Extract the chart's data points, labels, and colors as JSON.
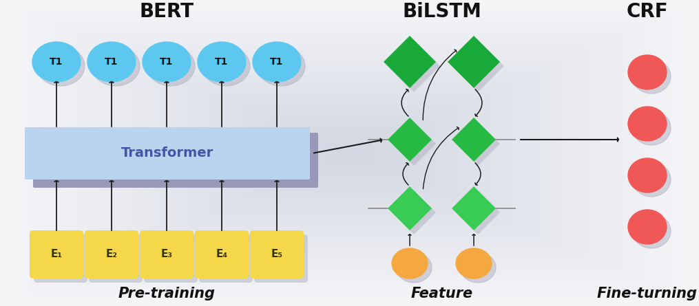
{
  "background_color": "#e8eaf0",
  "bg_gradient_center": "#f5f5f8",
  "bg_gradient_edge": "#d0d4e0",
  "bert_label": "BERT",
  "bilstm_label": "BiLSTM",
  "crf_label": "CRF",
  "pretraining_label": "Pre-training",
  "feature_label": "Feature",
  "fineturning_label": "Fine-turning",
  "transformer_label": "Transformer",
  "t_labels": [
    "T1",
    "T1",
    "T1",
    "T1",
    "T1"
  ],
  "e_labels": [
    "E₁",
    "E₂",
    "E₃",
    "E₄",
    "E₅"
  ],
  "t_color": "#5cc8f0",
  "e_color": "#f5d84a",
  "transformer_color_light": "#b8d4ee",
  "transformer_color_shadow": "#9898b8",
  "diamond_green_top": "#1aaa3a",
  "diamond_green_mid": "#28bb44",
  "diamond_green_bot": "#38cc55",
  "orange_color": "#f5a840",
  "red_color": "#f05858",
  "arrow_color": "#1a1a1a",
  "line_color": "#888888",
  "shadow_color": "#b0b0c0",
  "figw": 10.15,
  "figh": 4.45,
  "dpi": 100
}
